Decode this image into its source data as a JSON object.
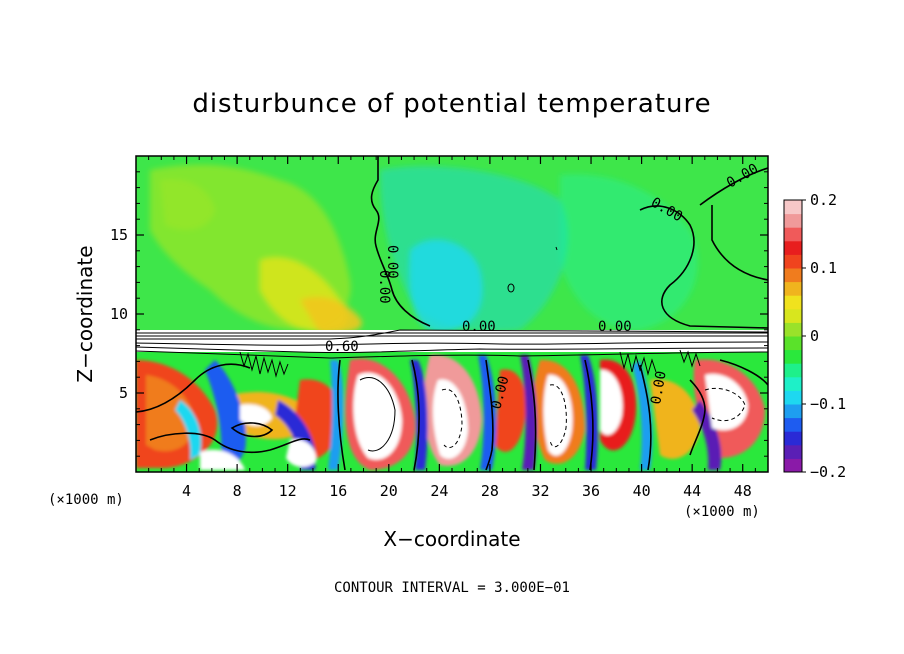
{
  "chart_data": {
    "type": "heatmap",
    "title": "disturbunce of potential temperature",
    "xlabel": "X−coordinate",
    "ylabel": "Z−coordinate",
    "x_unit_left": "(×1000 m)",
    "x_unit_right": "(×1000 m)",
    "footer": "CONTOUR INTERVAL = 3.000E−01",
    "xlim": [
      0,
      50
    ],
    "ylim": [
      0,
      20
    ],
    "x_ticks": [
      4,
      8,
      12,
      16,
      20,
      24,
      28,
      32,
      36,
      40,
      44,
      48
    ],
    "y_ticks": [
      5,
      10,
      15
    ],
    "colorbar": {
      "min": -0.2,
      "max": 0.2,
      "tick_values": [
        0.2,
        0.1,
        0,
        -0.1,
        -0.2
      ],
      "tick_labels": [
        "0.2",
        "0.1",
        "0",
        "−0.1",
        "−0.2"
      ],
      "colors": [
        "#8a1aa8",
        "#5a1fb5",
        "#2a2ad6",
        "#1e5cf0",
        "#1e9ef0",
        "#1ed8f0",
        "#1ef0c8",
        "#1ef08a",
        "#2ae83c",
        "#5ae22a",
        "#9ae22a",
        "#d8e61e",
        "#f0e21e",
        "#f0b41e",
        "#f07c1e",
        "#f0441e",
        "#e81e1e",
        "#f05a5a",
        "#f09a9a",
        "#f7c8c8"
      ]
    },
    "contour_labels": [
      "0.00",
      "0.00",
      "0.00",
      "0.00",
      "0.00",
      "0.60",
      "0.00",
      "0.00",
      "0.00"
    ]
  }
}
